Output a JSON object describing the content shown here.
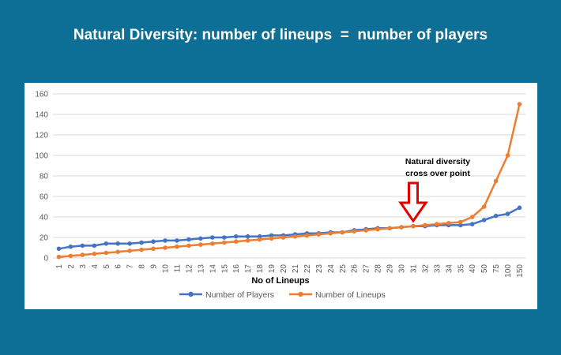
{
  "slide": {
    "title": "Natural Diversity: number of lineups  =  number of players"
  },
  "colors": {
    "background": "#0e6f96",
    "panel": "#ffffff",
    "players": "#4472c4",
    "lineups": "#ed7d31",
    "arrow": "#e00000"
  },
  "chart_data": {
    "type": "line",
    "title": "",
    "xlabel": "No of Lineups",
    "ylabel": "",
    "ylim": [
      0,
      160
    ],
    "yticks": [
      0,
      20,
      40,
      60,
      80,
      100,
      120,
      140,
      160
    ],
    "grid": "horizontal",
    "legend_position": "bottom",
    "categories": [
      "1",
      "2",
      "3",
      "4",
      "5",
      "6",
      "7",
      "8",
      "9",
      "10",
      "11",
      "12",
      "13",
      "14",
      "15",
      "16",
      "17",
      "18",
      "19",
      "20",
      "21",
      "22",
      "23",
      "24",
      "25",
      "26",
      "27",
      "28",
      "29",
      "30",
      "31",
      "32",
      "33",
      "34",
      "35",
      "40",
      "50",
      "75",
      "100",
      "150"
    ],
    "series": [
      {
        "name": "Number of Players",
        "color": "#4472c4",
        "values": [
          9,
          11,
          12,
          12,
          14,
          14,
          14,
          15,
          16,
          17,
          17,
          18,
          19,
          20,
          20,
          21,
          21,
          21,
          22,
          22,
          23,
          24,
          24,
          25,
          25,
          27,
          28,
          29,
          29,
          30,
          31,
          31,
          32,
          32,
          32,
          33,
          37,
          41,
          43,
          49
        ]
      },
      {
        "name": "Number of Lineups",
        "color": "#ed7d31",
        "values": [
          1,
          2,
          3,
          4,
          5,
          6,
          7,
          8,
          9,
          10,
          11,
          12,
          13,
          14,
          15,
          16,
          17,
          18,
          19,
          20,
          21,
          22,
          23,
          24,
          25,
          26,
          27,
          28,
          29,
          30,
          31,
          32,
          33,
          34,
          35,
          40,
          50,
          75,
          100,
          150
        ]
      }
    ],
    "annotation": {
      "text_line1": "Natural diversity",
      "text_line2": "cross over point",
      "points_to_category": "31",
      "arrow_direction": "down",
      "arrow_color": "#e00000"
    }
  }
}
